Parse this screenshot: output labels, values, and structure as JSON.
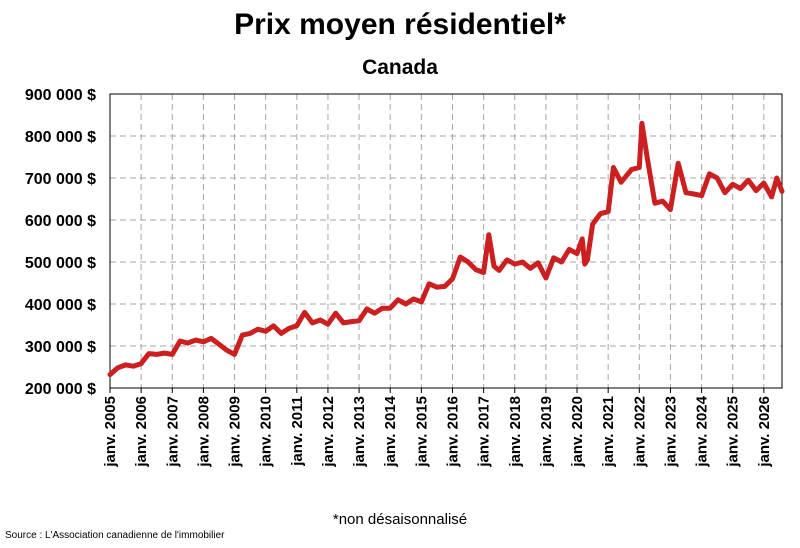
{
  "title": "Prix moyen résidentiel*",
  "subtitle": "Canada",
  "footnote": "*non désaisonnalisé",
  "source": "Source : L'Association canadienne de l'immobilier",
  "colors": {
    "line": "#cc1f1f",
    "grid": "#a6a6a6",
    "axis": "#000000"
  },
  "chart_data": {
    "type": "line",
    "title": "Prix moyen résidentiel*",
    "subtitle": "Canada",
    "xlabel": "",
    "ylabel": "",
    "ylim": [
      200000,
      900000
    ],
    "xlim": [
      "2005-01",
      "2026-08"
    ],
    "grid": true,
    "legend": "none",
    "y_ticks": [
      200000,
      300000,
      400000,
      500000,
      600000,
      700000,
      800000,
      900000
    ],
    "y_tick_labels": [
      "200 000 $",
      "300 000 $",
      "400 000 $",
      "500 000 $",
      "600 000 $",
      "700 000 $",
      "800 000 $",
      "900 000 $"
    ],
    "x_tick_labels": [
      "janv. 2005",
      "janv. 2006",
      "janv. 2007",
      "janv. 2008",
      "janv. 2009",
      "janv. 2010",
      "janv. 2011",
      "janv. 2012",
      "janv. 2013",
      "janv. 2014",
      "janv. 2015",
      "janv. 2016",
      "janv. 2017",
      "janv. 2018",
      "janv. 2019",
      "janv. 2020",
      "janv. 2021",
      "janv. 2022",
      "janv. 2023",
      "janv. 2024",
      "janv. 2025",
      "janv. 2026"
    ],
    "series": [
      {
        "x": [
          "2005-01",
          "2005-04",
          "2005-07",
          "2005-10",
          "2006-01",
          "2006-04",
          "2006-07",
          "2006-10",
          "2007-01",
          "2007-04",
          "2007-07",
          "2007-10",
          "2008-01",
          "2008-04",
          "2008-07",
          "2008-10",
          "2009-01",
          "2009-04",
          "2009-07",
          "2009-10",
          "2010-01",
          "2010-04",
          "2010-07",
          "2010-10",
          "2011-01",
          "2011-04",
          "2011-07",
          "2011-10",
          "2012-01",
          "2012-04",
          "2012-07",
          "2012-10",
          "2013-01",
          "2013-04",
          "2013-07",
          "2013-10",
          "2014-01",
          "2014-04",
          "2014-07",
          "2014-10",
          "2015-01",
          "2015-04",
          "2015-07",
          "2015-10",
          "2016-01",
          "2016-04",
          "2016-07",
          "2016-10",
          "2017-01",
          "2017-03",
          "2017-05",
          "2017-07",
          "2017-10",
          "2018-01",
          "2018-04",
          "2018-07",
          "2018-10",
          "2019-01",
          "2019-04",
          "2019-07",
          "2019-10",
          "2020-01",
          "2020-03",
          "2020-04",
          "2020-05",
          "2020-07",
          "2020-10",
          "2021-01",
          "2021-03",
          "2021-06",
          "2021-10",
          "2022-01",
          "2022-02",
          "2022-04",
          "2022-07",
          "2022-10",
          "2023-01",
          "2023-04",
          "2023-07",
          "2023-10",
          "2024-01",
          "2024-04",
          "2024-07",
          "2024-10",
          "2025-01",
          "2025-04",
          "2025-07",
          "2025-10",
          "2026-01",
          "2026-04",
          "2026-06",
          "2026-08"
        ],
        "values": [
          232000,
          248000,
          255000,
          252000,
          258000,
          282000,
          280000,
          283000,
          280000,
          312000,
          307000,
          314000,
          310000,
          318000,
          304000,
          290000,
          280000,
          326000,
          330000,
          340000,
          335000,
          348000,
          330000,
          342000,
          348000,
          380000,
          355000,
          362000,
          352000,
          378000,
          355000,
          358000,
          360000,
          388000,
          378000,
          390000,
          390000,
          410000,
          400000,
          412000,
          405000,
          448000,
          440000,
          442000,
          460000,
          512000,
          500000,
          482000,
          475000,
          565000,
          490000,
          480000,
          505000,
          495000,
          500000,
          485000,
          498000,
          462000,
          510000,
          500000,
          530000,
          520000,
          555000,
          495000,
          505000,
          590000,
          615000,
          620000,
          725000,
          690000,
          720000,
          725000,
          830000,
          750000,
          640000,
          645000,
          625000,
          735000,
          665000,
          662000,
          658000,
          710000,
          700000,
          665000,
          685000,
          675000,
          695000,
          670000,
          688000,
          655000,
          700000,
          668000
        ]
      }
    ]
  }
}
